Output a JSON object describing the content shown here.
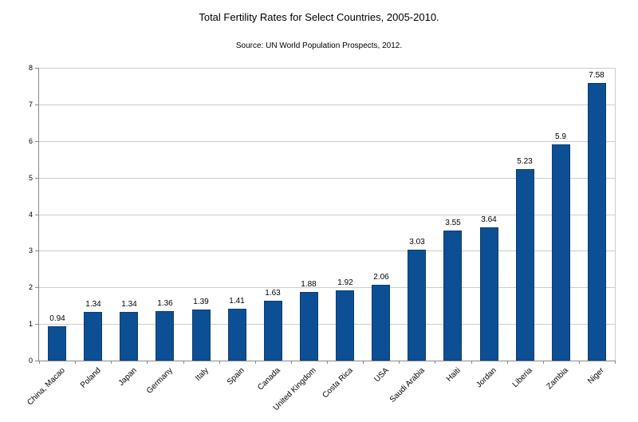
{
  "chart_data": {
    "type": "bar",
    "title": "Total Fertility Rates for Select Countries, 2005-2010.",
    "subtitle": "Source: UN World Population Prospects, 2012.",
    "categories": [
      "China, Macao",
      "Poland",
      "Japan",
      "Germany",
      "Italy",
      "Spain",
      "Canada",
      "United Kingdom",
      "Costa Rica",
      "USA",
      "Saudi Arabia",
      "Haiti",
      "Jordan",
      "Liberia",
      "Zambia",
      "Niger"
    ],
    "values": [
      0.94,
      1.34,
      1.34,
      1.36,
      1.39,
      1.41,
      1.63,
      1.88,
      1.92,
      2.06,
      3.03,
      3.55,
      3.64,
      5.23,
      5.9,
      7.58
    ],
    "xlabel": "",
    "ylabel": "",
    "ylim": [
      0,
      8
    ],
    "yticks": [
      0,
      1,
      2,
      3,
      4,
      5,
      6,
      7,
      8
    ],
    "grid": true,
    "legend": "none",
    "bar_color": "#0d4f94",
    "bar_border_color": "#0a3e73",
    "grid_color": "#cccccc",
    "axis_color": "#898989",
    "text_color": "#000000"
  }
}
